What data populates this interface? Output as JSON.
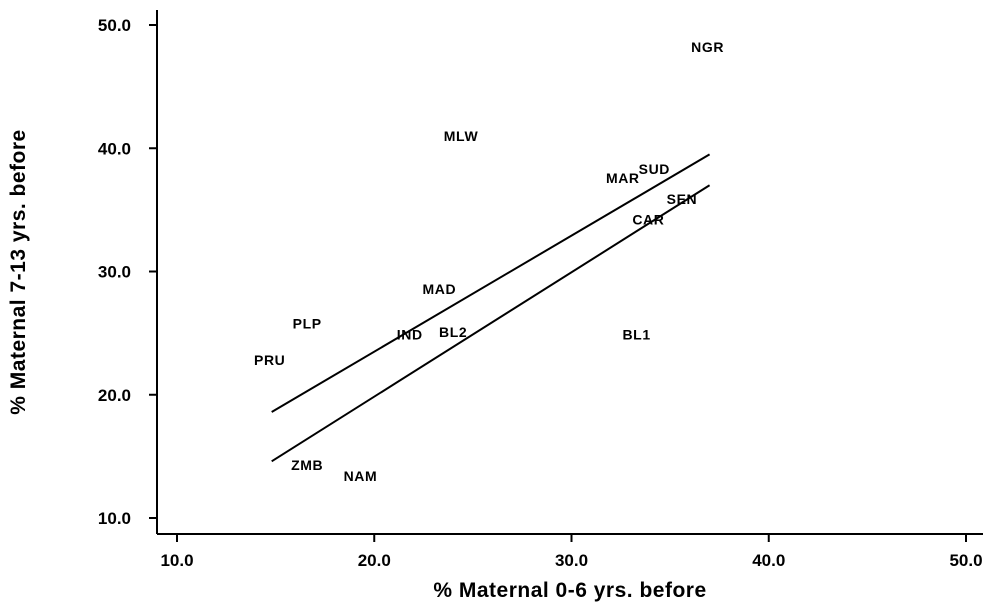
{
  "chart_data": {
    "type": "scatter",
    "xlabel": "% Maternal 0-6 yrs. before",
    "ylabel": "% Maternal 7-13 yrs. before",
    "xlim": [
      10.0,
      50.0
    ],
    "ylim": [
      10.0,
      50.0
    ],
    "x_ticks": [
      "10.0",
      "20.0",
      "30.0",
      "40.0",
      "50.0"
    ],
    "y_ticks": [
      "10.0",
      "20.0",
      "30.0",
      "40.0",
      "50.0"
    ],
    "grid": false,
    "points": [
      {
        "label": "NGR",
        "x": 36.9,
        "y": 48.2
      },
      {
        "label": "MLW",
        "x": 24.4,
        "y": 41.0
      },
      {
        "label": "SUD",
        "x": 34.2,
        "y": 38.3
      },
      {
        "label": "MAR",
        "x": 32.6,
        "y": 37.6
      },
      {
        "label": "SEN",
        "x": 35.6,
        "y": 35.9
      },
      {
        "label": "CAR",
        "x": 33.9,
        "y": 34.2
      },
      {
        "label": "MAD",
        "x": 23.3,
        "y": 28.6
      },
      {
        "label": "PLP",
        "x": 16.6,
        "y": 25.8
      },
      {
        "label": "BL2",
        "x": 24.0,
        "y": 25.1
      },
      {
        "label": "IND",
        "x": 21.8,
        "y": 24.9
      },
      {
        "label": "BL1",
        "x": 33.3,
        "y": 24.9
      },
      {
        "label": "PRU",
        "x": 14.7,
        "y": 22.8
      },
      {
        "label": "ZMB",
        "x": 16.6,
        "y": 14.3
      },
      {
        "label": "NAM",
        "x": 19.3,
        "y": 13.4
      }
    ],
    "lines": [
      {
        "x": [
          14.8,
          37.0
        ],
        "y": [
          18.6,
          39.5
        ]
      },
      {
        "x": [
          14.8,
          37.0
        ],
        "y": [
          14.6,
          37.0
        ]
      }
    ]
  }
}
